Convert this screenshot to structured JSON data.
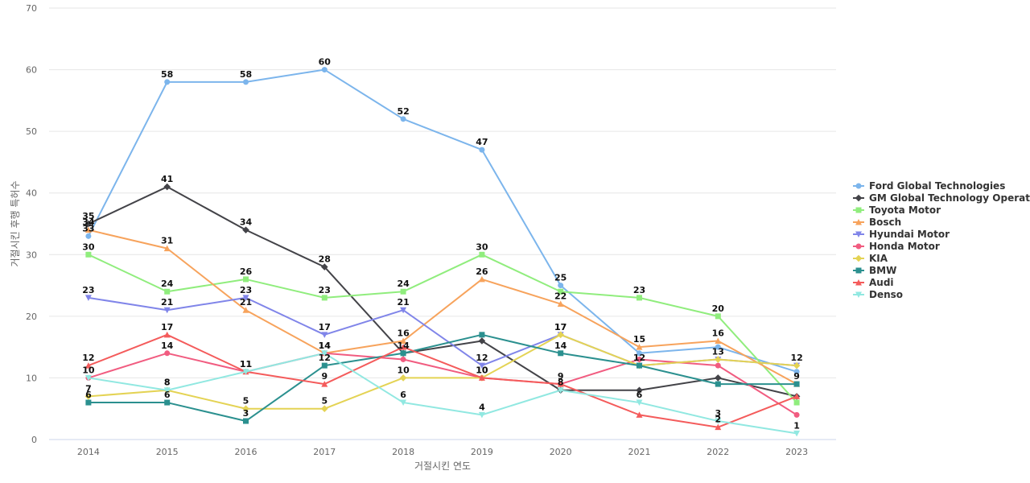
{
  "chart_data": {
    "type": "line",
    "xlabel": "거절시킨 연도",
    "ylabel": "거절시킨 후행 특허수",
    "ylim": [
      0,
      70
    ],
    "yticks": [
      0,
      10,
      20,
      30,
      40,
      50,
      60,
      70
    ],
    "grid": true,
    "legend_position": "right",
    "categories": [
      "2014",
      "2015",
      "2016",
      "2017",
      "2018",
      "2019",
      "2020",
      "2021",
      "2022",
      "2023"
    ],
    "series": [
      {
        "name": "Ford Global Technologies",
        "color": "#7cb5ec",
        "marker": "circle",
        "values": [
          33,
          58,
          58,
          60,
          52,
          47,
          25,
          14,
          15,
          11
        ]
      },
      {
        "name": "GM Global Technology Operat...",
        "color": "#434348",
        "marker": "diamond",
        "values": [
          35,
          41,
          34,
          28,
          14,
          16,
          8,
          8,
          10,
          7
        ]
      },
      {
        "name": "Toyota Motor",
        "color": "#90ed7d",
        "marker": "square",
        "values": [
          30,
          24,
          26,
          23,
          24,
          30,
          24,
          23,
          20,
          6
        ]
      },
      {
        "name": "Bosch",
        "color": "#f7a35c",
        "marker": "triangle",
        "values": [
          34,
          31,
          21,
          14,
          16,
          26,
          22,
          15,
          16,
          9
        ]
      },
      {
        "name": "Hyundai Motor",
        "color": "#8085e9",
        "marker": "triangle-down",
        "values": [
          23,
          21,
          23,
          17,
          21,
          12,
          17,
          12,
          13,
          12
        ]
      },
      {
        "name": "Honda Motor",
        "color": "#f15c80",
        "marker": "circle",
        "values": [
          10,
          14,
          11,
          14,
          13,
          10,
          9,
          13,
          12,
          4
        ]
      },
      {
        "name": "KIA",
        "color": "#e4d354",
        "marker": "diamond",
        "values": [
          7,
          8,
          5,
          5,
          10,
          10,
          17,
          12,
          13,
          12
        ]
      },
      {
        "name": "BMW",
        "color": "#2b908f",
        "marker": "square",
        "values": [
          6,
          6,
          3,
          12,
          14,
          17,
          14,
          12,
          9,
          9
        ]
      },
      {
        "name": "Audi",
        "color": "#f45b5b",
        "marker": "triangle",
        "values": [
          12,
          17,
          11,
          9,
          15,
          10,
          9,
          4,
          2,
          7
        ]
      },
      {
        "name": "Denso",
        "color": "#91e8e1",
        "marker": "triangle-down",
        "values": [
          10,
          8,
          11,
          14,
          6,
          4,
          8,
          6,
          3,
          1
        ]
      }
    ],
    "data_labels": [
      {
        "series": 0,
        "points": [
          0,
          1,
          2,
          3,
          4,
          5,
          6
        ]
      },
      {
        "series": 1,
        "points": [
          0,
          1,
          2,
          3
        ]
      },
      {
        "series": 2,
        "points": [
          0,
          1,
          2,
          3,
          4,
          5,
          7,
          8
        ]
      },
      {
        "series": 3,
        "points": [
          0,
          1,
          2,
          3,
          4,
          5,
          6,
          7,
          8
        ]
      },
      {
        "series": 4,
        "points": [
          0,
          1,
          2,
          3,
          4,
          5,
          6,
          7,
          8,
          9
        ]
      },
      {
        "series": 5,
        "points": [
          1,
          2,
          3,
          5,
          6
        ]
      },
      {
        "series": 6,
        "points": [
          0,
          1,
          2,
          3,
          4,
          6
        ]
      },
      {
        "series": 7,
        "points": [
          0,
          1,
          2,
          3,
          4,
          6,
          9
        ]
      },
      {
        "series": 8,
        "points": [
          0,
          1,
          2,
          3,
          5,
          8
        ]
      },
      {
        "series": 9,
        "points": [
          0,
          1,
          4,
          5,
          6,
          7,
          8,
          9
        ]
      }
    ]
  }
}
